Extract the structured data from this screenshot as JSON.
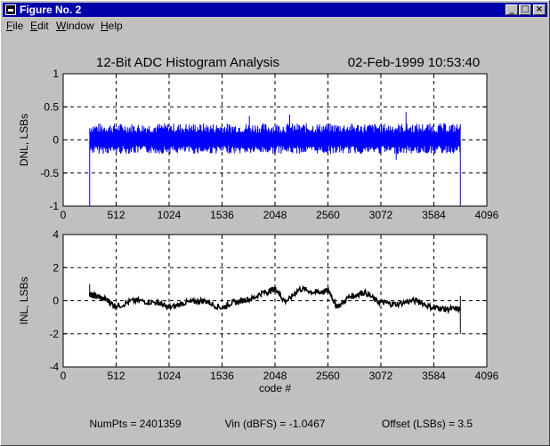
{
  "window": {
    "title": "Figure No. 2",
    "menu": [
      {
        "label": "File",
        "key": "F",
        "rest": "ile"
      },
      {
        "label": "Edit",
        "key": "E",
        "rest": "dit"
      },
      {
        "label": "Window",
        "key": "W",
        "rest": "indow"
      },
      {
        "label": "Help",
        "key": "H",
        "rest": "elp"
      }
    ],
    "buttons": {
      "minimize": "_",
      "maximize": "□",
      "close": "×"
    }
  },
  "figure": {
    "title": "12-Bit ADC Histogram Analysis",
    "timestamp": "02-Feb-1999 10:53:40",
    "footer": {
      "numpts": "NumPts = 2401359",
      "vin": "Vin (dBFS) = -1.0467",
      "offset": "Offset (LSBs) = 3.5"
    }
  },
  "colors": {
    "dnl_line": "#0000ff",
    "inl_line": "#000000",
    "background": "#c0c0c0",
    "axes_bg": "#ffffff",
    "titlebar": "#0000aa"
  },
  "chart_data": [
    {
      "type": "line",
      "id": "dnl",
      "title": "12-Bit ADC Histogram Analysis",
      "xlabel": "",
      "ylabel": "DNL, LSBs",
      "xlim": [
        0,
        4096
      ],
      "ylim": [
        -1,
        1
      ],
      "xticks": [
        0,
        512,
        1024,
        1536,
        2048,
        2560,
        3072,
        3584,
        4096
      ],
      "yticks": [
        -1,
        -0.5,
        0,
        0.5,
        1
      ],
      "ytick_labels": [
        "-1",
        "-0.5",
        "0",
        "0.5",
        "1"
      ],
      "grid": true,
      "x_range_data": [
        256,
        3840
      ],
      "band": {
        "upper": 0.18,
        "lower": -0.15,
        "typical_peak": 0.28
      },
      "spikes": [
        {
          "x": 256,
          "y": -1
        },
        {
          "x": 1800,
          "y": 0.36
        },
        {
          "x": 2190,
          "y": 0.38
        },
        {
          "x": 3220,
          "y": -0.3
        },
        {
          "x": 3315,
          "y": 0.42
        },
        {
          "x": 3840,
          "y": -1
        }
      ]
    },
    {
      "type": "line",
      "id": "inl",
      "xlabel": "code #",
      "ylabel": "INL, LSBs",
      "xlim": [
        0,
        4096
      ],
      "ylim": [
        -4,
        4
      ],
      "xticks": [
        0,
        512,
        1024,
        1536,
        2048,
        2560,
        3072,
        3584,
        4096
      ],
      "yticks": [
        -4,
        -2,
        0,
        2,
        4
      ],
      "ytick_labels": [
        "-4",
        "-2",
        "0",
        "2",
        "4"
      ],
      "grid": true,
      "x": [
        256,
        300,
        400,
        512,
        700,
        900,
        1024,
        1200,
        1350,
        1536,
        1650,
        1800,
        1950,
        2048,
        2150,
        2300,
        2450,
        2560,
        2650,
        2800,
        2900,
        3072,
        3200,
        3400,
        3584,
        3700,
        3840
      ],
      "y": [
        0.4,
        0.3,
        0.1,
        -0.3,
        0.0,
        -0.1,
        -0.4,
        -0.1,
        0.0,
        -0.4,
        -0.1,
        0.1,
        0.5,
        0.7,
        0.0,
        0.7,
        0.5,
        0.6,
        -0.3,
        0.3,
        0.5,
        -0.1,
        -0.2,
        0.0,
        -0.4,
        -0.5,
        -0.5
      ],
      "end_spikes": [
        {
          "x": 256,
          "y": 1.0
        },
        {
          "x": 3840,
          "y": -2.0
        }
      ]
    }
  ]
}
